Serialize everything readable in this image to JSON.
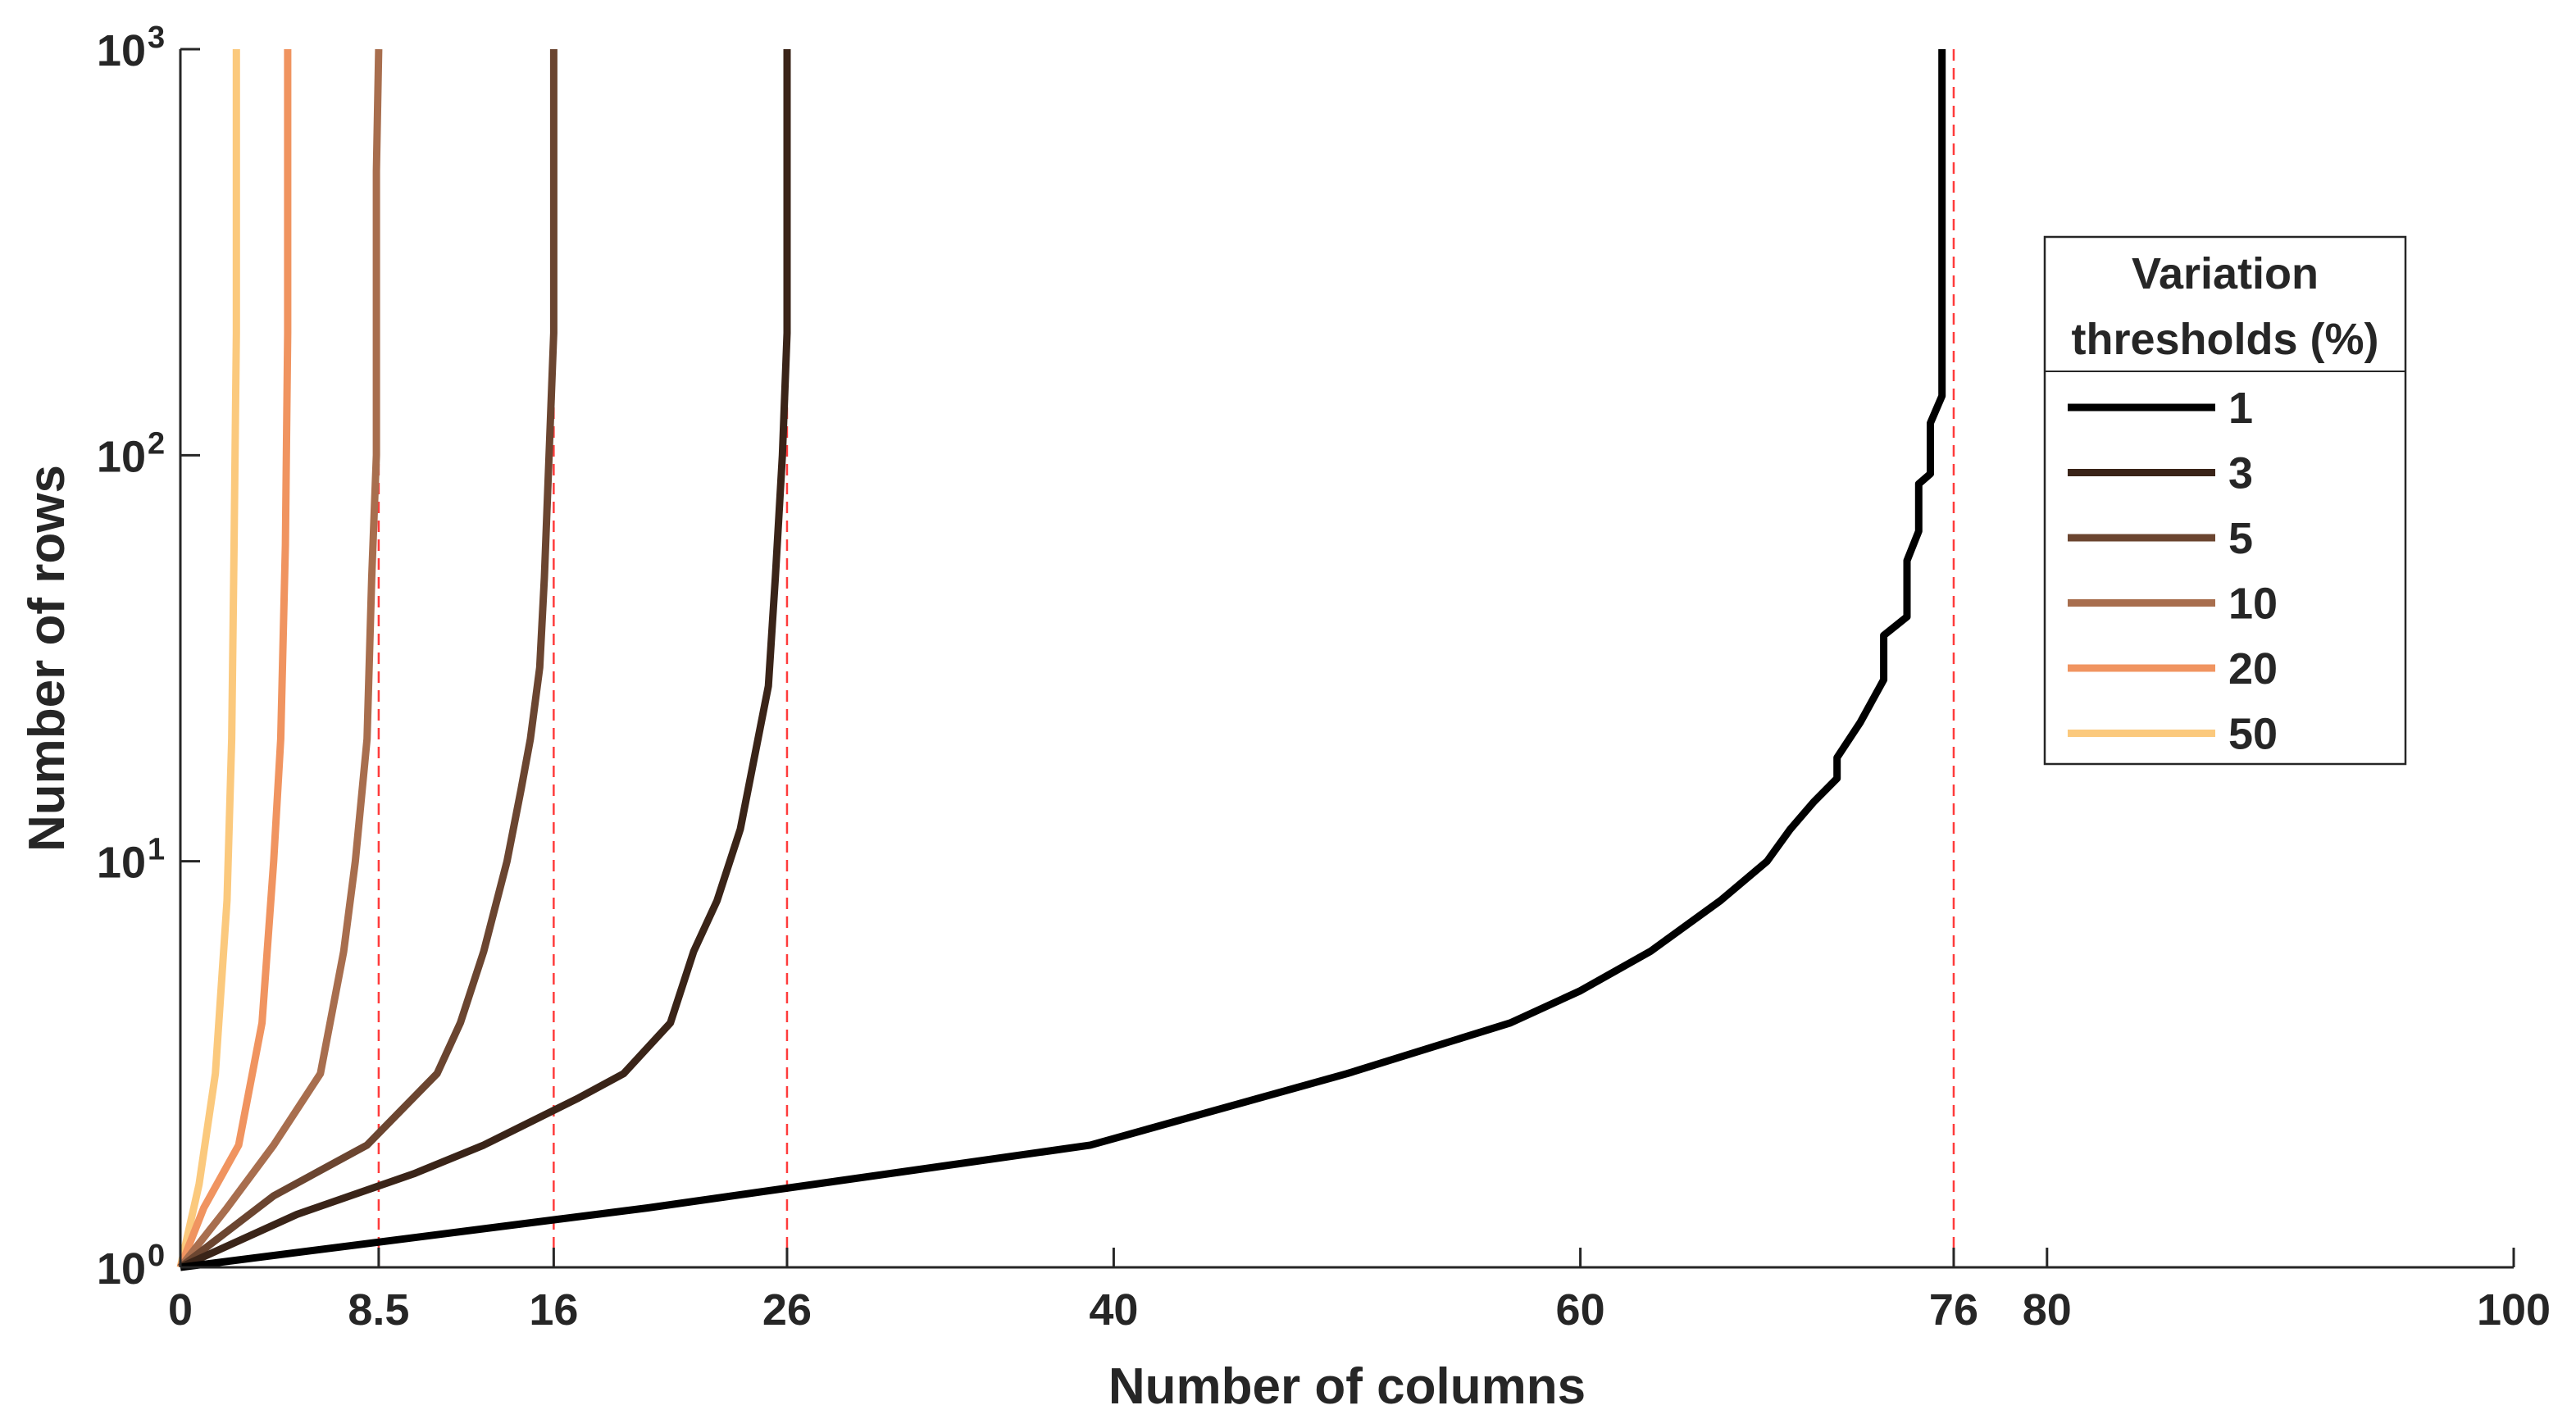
{
  "chart_data": {
    "type": "line",
    "xlabel": "Number of columns",
    "ylabel": "Number of rows",
    "xlim": [
      0,
      100
    ],
    "ylim": [
      1,
      1000
    ],
    "yscale": "log",
    "grid": false,
    "x_ticks": [
      {
        "value": 0,
        "label": "0"
      },
      {
        "value": 8.5,
        "label": "8.5"
      },
      {
        "value": 16,
        "label": "16"
      },
      {
        "value": 26,
        "label": "26"
      },
      {
        "value": 40,
        "label": "40"
      },
      {
        "value": 60,
        "label": "60"
      },
      {
        "value": 76,
        "label": "76"
      },
      {
        "value": 80,
        "label": "80"
      },
      {
        "value": 100,
        "label": "100"
      }
    ],
    "y_ticks": [
      {
        "value": 1,
        "base": "10",
        "exp": "0"
      },
      {
        "value": 10,
        "base": "10",
        "exp": "1"
      },
      {
        "value": 100,
        "base": "10",
        "exp": "2"
      },
      {
        "value": 1000,
        "base": "10",
        "exp": "3"
      }
    ],
    "reference_lines": {
      "orientation": "vertical",
      "style": "dashed",
      "color": "#ff3b3b",
      "x": [
        8.5,
        16,
        26,
        76
      ]
    },
    "legend": {
      "title_lines": [
        "Variation",
        "thresholds (%)"
      ],
      "placement": "right"
    },
    "series": [
      {
        "name": "1",
        "color": "#000000",
        "x": [
          0,
          20,
          39,
          50,
          57,
          60,
          63,
          66,
          68,
          69,
          70,
          71,
          71,
          72,
          73,
          73,
          74,
          74,
          74.5,
          74.5,
          75,
          75,
          75.5,
          75.5,
          75.5
        ],
        "y": [
          1,
          1.4,
          2,
          3,
          4,
          4.8,
          6,
          8,
          10,
          12,
          14,
          16,
          18,
          22,
          28,
          36,
          40,
          55,
          65,
          85,
          90,
          120,
          140,
          400,
          1000
        ]
      },
      {
        "name": "3",
        "color": "#3a2418",
        "x": [
          0,
          5,
          10,
          13,
          17,
          19,
          21,
          22,
          23,
          24,
          24.6,
          25.2,
          25.5,
          25.8,
          26,
          26,
          26
        ],
        "y": [
          1,
          1.35,
          1.7,
          2,
          2.6,
          3,
          4,
          6,
          8,
          12,
          18,
          27,
          50,
          100,
          200,
          500,
          1000
        ]
      },
      {
        "name": "5",
        "color": "#6b4530",
        "x": [
          0,
          4,
          8,
          11,
          12,
          13,
          14,
          14.6,
          15,
          15.4,
          15.6,
          15.8,
          16,
          16,
          16
        ],
        "y": [
          1,
          1.5,
          2,
          3,
          4,
          6,
          10,
          15,
          20,
          30,
          50,
          100,
          200,
          500,
          1000
        ]
      },
      {
        "name": "10",
        "color": "#a86e4e",
        "x": [
          0,
          2,
          4,
          6,
          7,
          7.5,
          8,
          8.2,
          8.4,
          8.4,
          8.5
        ],
        "y": [
          1,
          1.4,
          2,
          3,
          6,
          10,
          20,
          50,
          100,
          500,
          1000
        ]
      },
      {
        "name": "20",
        "color": "#f09460",
        "x": [
          0,
          1,
          2.5,
          3.5,
          4,
          4.3,
          4.5,
          4.6,
          4.6
        ],
        "y": [
          1,
          1.4,
          2,
          4,
          10,
          20,
          60,
          200,
          1000
        ]
      },
      {
        "name": "50",
        "color": "#fbc97d",
        "x": [
          0,
          0.8,
          1.5,
          2,
          2.2,
          2.3,
          2.4,
          2.4
        ],
        "y": [
          1,
          1.6,
          3,
          8,
          20,
          60,
          200,
          1000
        ]
      }
    ]
  }
}
